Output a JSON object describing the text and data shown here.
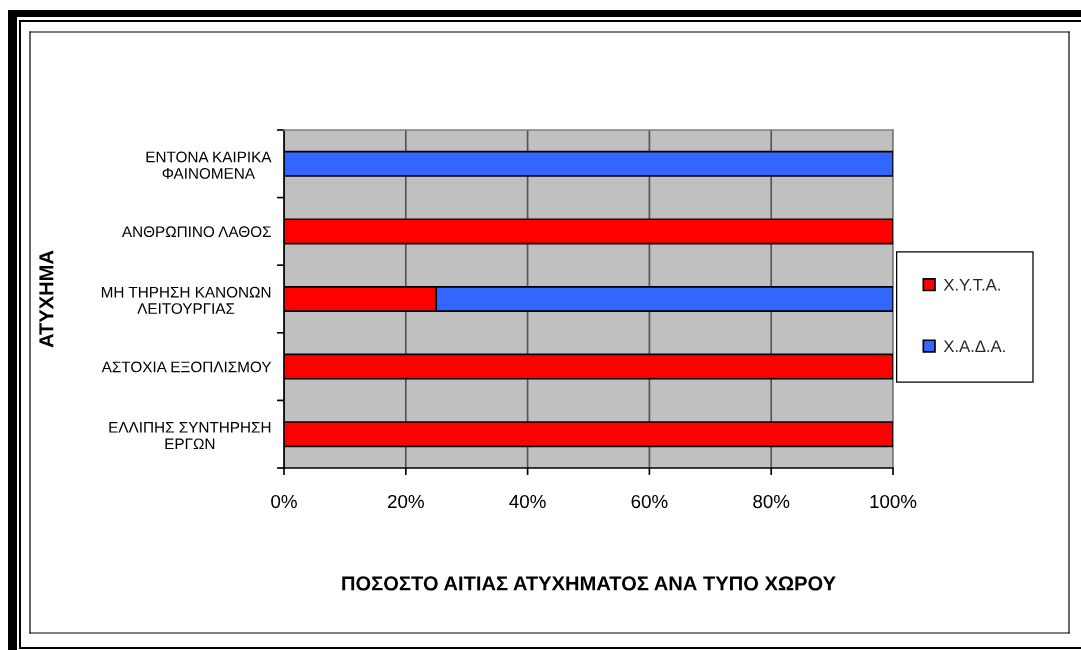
{
  "chart_data": {
    "type": "bar",
    "orientation": "horizontal",
    "stacked": true,
    "categories": [
      "ΕΝΤΟΝΑ ΚΑΙΡΙΚΑ\nΦΑΙΝΟΜΕΝΑ",
      "ΑΝΘΡΩΠΙΝΟ ΛΑΘΟΣ",
      "ΜΗ ΤΗΡΗΣΗ ΚΑΝΟΝΩΝ\nΛΕΙΤΟΥΡΓΙΑΣ",
      "ΑΣΤΟΧΙΑ ΕΞΟΠΛΙΣΜΟΥ",
      "ΕΛΛΙΠΗΣ ΣΥΝΤΗΡΗΣΗ\nΕΡΓΩΝ"
    ],
    "series": [
      {
        "name": "Χ.Υ.Τ.Α.",
        "color": "#ff0000",
        "values": [
          null,
          100,
          25,
          100,
          100
        ]
      },
      {
        "name": "Χ.Α.Δ.Α.",
        "color": "#3366ff",
        "values": [
          100,
          null,
          75,
          null,
          null
        ]
      }
    ],
    "xlim": [
      0,
      100
    ],
    "xticks": [
      {
        "value": 0,
        "label": "0%"
      },
      {
        "value": 20,
        "label": "20%"
      },
      {
        "value": 40,
        "label": "40%"
      },
      {
        "value": 60,
        "label": "60%"
      },
      {
        "value": 80,
        "label": "80%"
      },
      {
        "value": 100,
        "label": "100%"
      }
    ],
    "xlabel": "ΠΟΣΟΣΤΟ ΑΙΤΙΑΣ ΑΤΥΧΗΜΑΤΟΣ ΑΝΑ ΤΥΠΟ ΧΩΡΟΥ",
    "ylabel": "ΑΤΥΧΗΜΑ",
    "grid": "x",
    "legend": "right"
  }
}
